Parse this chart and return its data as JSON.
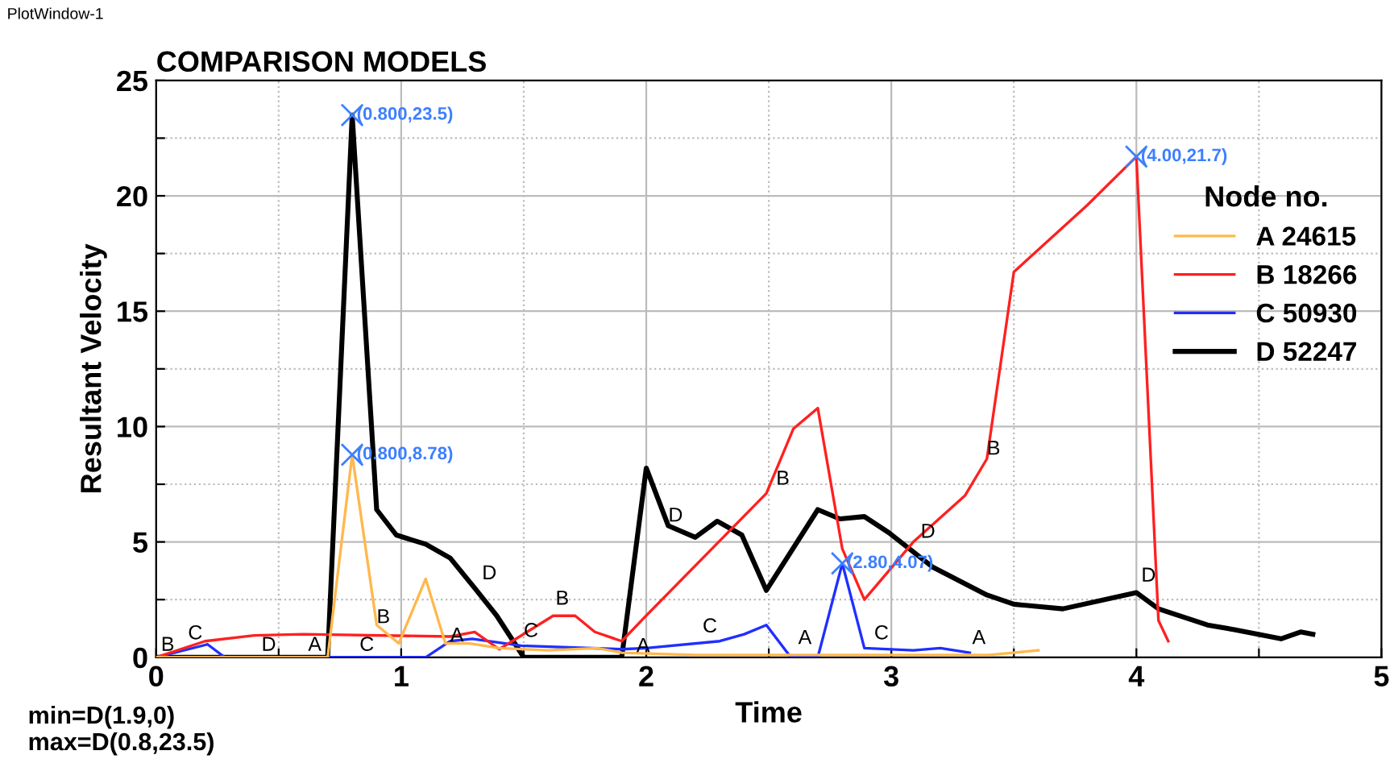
{
  "chart_data": {
    "type": "line",
    "title": "COMPARISON MODELS",
    "xlabel": "Time",
    "ylabel": "Resultant Velocity",
    "legend_title": "Node no.",
    "legend": "top right",
    "grid": true,
    "line_style": "solid",
    "marker": "none",
    "xlim": [
      0,
      5
    ],
    "ylim": [
      0,
      25
    ],
    "xticks": [
      0,
      {
        "value": 0.5,
        "label": null
      },
      1,
      {
        "value": 1.5,
        "label": null
      },
      2,
      {
        "value": 2.5,
        "label": null
      },
      3,
      {
        "value": 3.5,
        "label": null
      },
      4,
      {
        "value": 4.5,
        "label": null
      },
      5
    ],
    "yticks": [
      0,
      {
        "value": 2.5,
        "label": null
      },
      5,
      {
        "value": 7.5,
        "label": null
      },
      10,
      {
        "value": 12.5,
        "label": null
      },
      15,
      {
        "value": 17.5,
        "label": null
      },
      20,
      {
        "value": 22.5,
        "label": null
      },
      25
    ],
    "series": [
      {
        "name": "A 24615",
        "color": "#ffb84d",
        "x": [
          0,
          0.7,
          0.8,
          0.9,
          0.99,
          1.1,
          1.18,
          1.28,
          1.4,
          1.6,
          1.8,
          1.9,
          2.2,
          2.6,
          3.0,
          3.4,
          3.6
        ],
        "values": [
          0,
          0,
          8.78,
          1.4,
          0.6,
          3.4,
          0.6,
          0.6,
          0.4,
          0.3,
          0.4,
          0.2,
          0.1,
          0.1,
          0.1,
          0.1,
          0.3
        ]
      },
      {
        "name": "B 18266",
        "color": "#ff2020",
        "x": [
          0,
          0.2,
          0.4,
          0.6,
          1.2,
          1.3,
          1.4,
          1.62,
          1.71,
          1.79,
          1.9,
          1.99,
          2.49,
          2.6,
          2.7,
          2.8,
          2.89,
          3.09,
          3.3,
          3.39,
          3.5,
          3.8,
          4.0,
          4.09,
          4.13
        ],
        "values": [
          0,
          0.7,
          0.95,
          1.0,
          0.9,
          1.1,
          0.35,
          1.8,
          1.8,
          1.1,
          0.7,
          1.7,
          7.1,
          9.9,
          10.8,
          4.7,
          2.5,
          5.0,
          7.0,
          8.6,
          16.7,
          19.6,
          21.7,
          1.6,
          0.7
        ]
      },
      {
        "name": "C 50930",
        "color": "#1f2fff",
        "x": [
          0,
          0.21,
          0.28,
          1.1,
          1.2,
          1.29,
          1.49,
          1.9,
          2.0,
          2.3,
          2.4,
          2.49,
          2.59,
          2.7,
          2.8,
          2.89,
          3.09,
          3.2,
          3.32
        ],
        "values": [
          0,
          0.56,
          0,
          0,
          0.7,
          0.8,
          0.5,
          0.35,
          0.4,
          0.7,
          1.0,
          1.4,
          0,
          0,
          4.07,
          0.4,
          0.3,
          0.4,
          0.2
        ]
      },
      {
        "name": "D 52247",
        "color": "#000000",
        "x": [
          0,
          0.7,
          0.8,
          0.9,
          0.98,
          1.1,
          1.2,
          1.3,
          1.39,
          1.5,
          1.9,
          2.0,
          2.09,
          2.2,
          2.29,
          2.39,
          2.49,
          2.7,
          2.79,
          2.89,
          2.99,
          3.17,
          3.39,
          3.5,
          3.7,
          4.0,
          4.09,
          4.29,
          4.4,
          4.59,
          4.67,
          4.72
        ],
        "values": [
          0,
          0,
          23.5,
          6.4,
          5.3,
          4.9,
          4.3,
          3.0,
          1.8,
          0,
          0,
          8.2,
          5.7,
          5.2,
          5.9,
          5.3,
          2.9,
          6.4,
          6.0,
          6.1,
          5.4,
          3.9,
          2.7,
          2.3,
          2.1,
          2.8,
          2.1,
          1.4,
          1.2,
          0.8,
          1.1,
          1.0
        ]
      },
      {
        "type": "scatter",
        "color": "#3d7fff",
        "marker": "cross",
        "x": [
          0.8,
          0.8,
          4.0,
          2.8
        ],
        "values": [
          23.5,
          8.78,
          21.7,
          4.07
        ],
        "value_labels": [
          "(0.800,23.5)",
          "(0.800,8.78)",
          "(4.00,21.7)",
          "(2.80,4.07)"
        ]
      }
    ],
    "annotations": [
      "PlotWindow-1",
      "min=D(1.9,0)",
      "max=D(0.8,23.5)",
      {
        "text": "B",
        "x": 0.02,
        "y": 0.1
      },
      {
        "text": "C",
        "x": 0.13,
        "y": 0.6
      },
      {
        "text": "D",
        "x": 0.43,
        "y": 0.1
      },
      {
        "text": "A",
        "x": 0.62,
        "y": 0.1
      },
      {
        "text": "C",
        "x": 0.83,
        "y": 0.1
      },
      {
        "text": "B",
        "x": 0.9,
        "y": 1.3
      },
      {
        "text": "A",
        "x": 1.2,
        "y": 0.5
      },
      {
        "text": "D",
        "x": 1.33,
        "y": 3.2
      },
      {
        "text": "C",
        "x": 1.5,
        "y": 0.7
      },
      {
        "text": "B",
        "x": 1.63,
        "y": 2.1
      },
      {
        "text": "A",
        "x": 1.96,
        "y": 0.05
      },
      {
        "text": "D",
        "x": 2.09,
        "y": 5.7
      },
      {
        "text": "C",
        "x": 2.23,
        "y": 0.9
      },
      {
        "text": "B",
        "x": 2.53,
        "y": 7.3
      },
      {
        "text": "A",
        "x": 2.62,
        "y": 0.4
      },
      {
        "text": "C",
        "x": 2.93,
        "y": 0.6
      },
      {
        "text": "D",
        "x": 3.12,
        "y": 5.0
      },
      {
        "text": "A",
        "x": 3.33,
        "y": 0.4
      },
      {
        "text": "B",
        "x": 3.39,
        "y": 8.6
      },
      {
        "text": "D",
        "x": 4.02,
        "y": 3.1
      }
    ]
  }
}
